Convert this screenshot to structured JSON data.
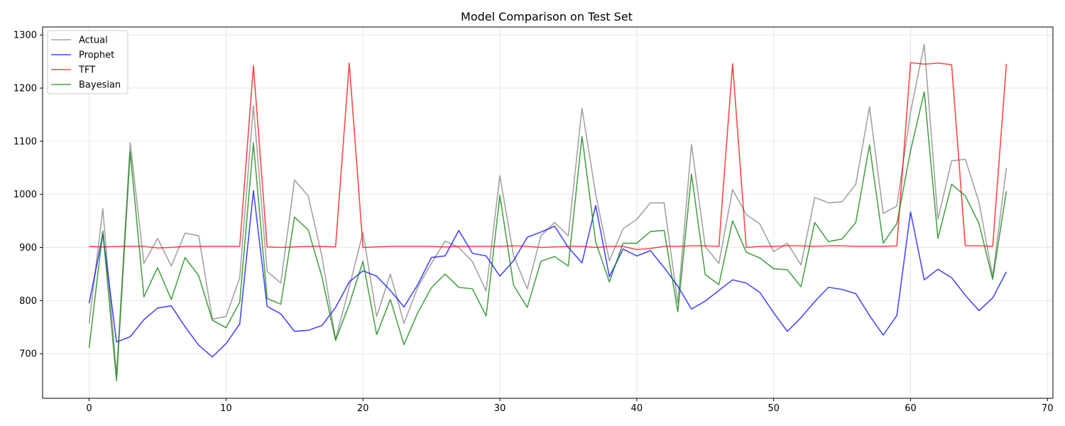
{
  "chart_data": {
    "type": "line",
    "title": "Model Comparison on Test Set",
    "xlabel": "",
    "ylabel": "",
    "xlim": [
      -3.4,
      70.4
    ],
    "ylim": [
      616,
      1315
    ],
    "xticks": [
      0,
      10,
      20,
      30,
      40,
      50,
      60,
      70
    ],
    "yticks": [
      700,
      800,
      900,
      1000,
      1100,
      1200,
      1300
    ],
    "grid": true,
    "legend_position": "top-left",
    "series": [
      {
        "name": "Actual",
        "color": "#808080",
        "values": [
          757,
          973,
          660,
          1097,
          870,
          917,
          865,
          927,
          922,
          765,
          770,
          843,
          1167,
          855,
          833,
          1027,
          997,
          884,
          727,
          825,
          928,
          770,
          850,
          757,
          825,
          870,
          912,
          900,
          873,
          818,
          1035,
          885,
          822,
          922,
          947,
          922,
          1162,
          1000,
          875,
          935,
          953,
          984,
          984,
          795,
          1094,
          902,
          870,
          1009,
          962,
          944,
          892,
          908,
          867,
          994,
          984,
          986,
          1019,
          1165,
          964,
          978,
          1155,
          1282,
          953,
          1063,
          1066,
          985,
          845,
          1050
        ]
      },
      {
        "name": "Prophet",
        "color": "#0000ff",
        "values": [
          795,
          925,
          722,
          732,
          764,
          786,
          790,
          751,
          716,
          694,
          719,
          756,
          1007,
          789,
          775,
          742,
          744,
          753,
          787,
          835,
          856,
          846,
          819,
          788,
          830,
          881,
          884,
          932,
          889,
          884,
          846,
          875,
          919,
          929,
          940,
          900,
          871,
          979,
          845,
          897,
          884,
          894,
          862,
          827,
          784,
          799,
          819,
          839,
          833,
          815,
          777,
          742,
          768,
          798,
          825,
          821,
          813,
          772,
          735,
          772,
          967,
          839,
          859,
          843,
          810,
          781,
          805,
          854
        ]
      },
      {
        "name": "TFT",
        "color": "#ff0000",
        "values": [
          902,
          901,
          902,
          902,
          902,
          899,
          900,
          902,
          902,
          902,
          902,
          902,
          1242,
          901,
          900,
          901,
          902,
          902,
          901,
          1247,
          900,
          901,
          902,
          902,
          902,
          902,
          901,
          902,
          902,
          902,
          902,
          903,
          902,
          900,
          901,
          902,
          902,
          900,
          902,
          902,
          896,
          898,
          902,
          902,
          903,
          903,
          902,
          1246,
          900,
          902,
          902,
          903,
          903,
          902,
          903,
          903,
          902,
          902,
          902,
          903,
          1248,
          1245,
          1247,
          1244,
          903,
          903,
          902,
          1245
        ]
      },
      {
        "name": "Bayesian",
        "color": "#008000",
        "values": [
          711,
          931,
          649,
          1080,
          807,
          862,
          802,
          881,
          847,
          763,
          749,
          797,
          1097,
          804,
          793,
          957,
          933,
          845,
          725,
          793,
          874,
          736,
          802,
          717,
          777,
          824,
          850,
          825,
          822,
          771,
          998,
          829,
          787,
          874,
          883,
          865,
          1109,
          910,
          835,
          908,
          908,
          930,
          932,
          779,
          1038,
          849,
          830,
          950,
          891,
          880,
          860,
          858,
          826,
          947,
          911,
          916,
          947,
          1093,
          908,
          945,
          1082,
          1193,
          917,
          1019,
          997,
          945,
          840,
          1006
        ]
      }
    ]
  }
}
